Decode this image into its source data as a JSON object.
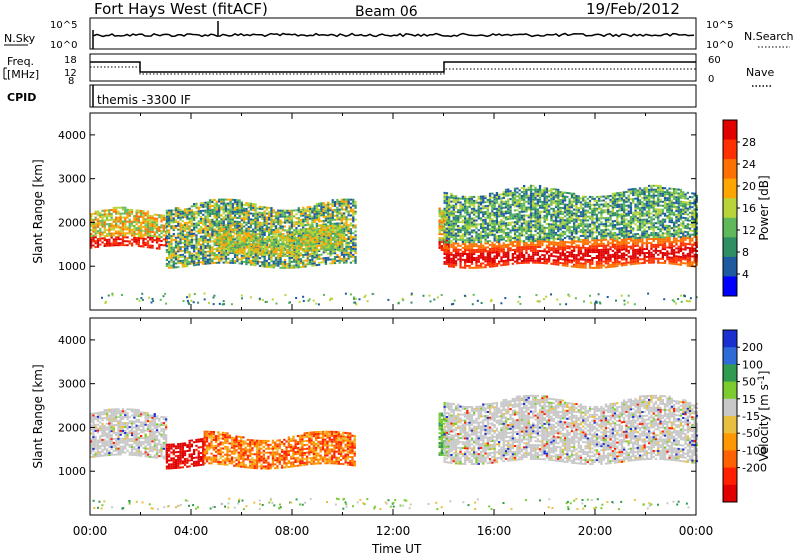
{
  "header": {
    "title": "Fort Hays West (fitACF)",
    "beam": "Beam 06",
    "date": "19/Feb/2012"
  },
  "top_panels": {
    "nsky_label": "N.Sky",
    "nsearch_label": "N.Search",
    "freq_label_1": "Freq.",
    "freq_label_2": "[MHz]",
    "nave_label": "Nave",
    "cpid_label": "CPID",
    "cpid_text": "themis -3300 IF",
    "noise_left_ticks": [
      "10^5",
      "10^0"
    ],
    "noise_right_ticks": [
      "10^5",
      "10^0"
    ],
    "freq_ticks": [
      "18",
      "12",
      "8"
    ],
    "nave_ticks": [
      "60",
      "0"
    ]
  },
  "colors": {
    "power_scale": [
      "#0000ff",
      "#1e5aa0",
      "#2f8f64",
      "#5fb85a",
      "#b8d438",
      "#ffa500",
      "#ff7000",
      "#ff3000",
      "#e00000"
    ],
    "velocity_scale": [
      "#1a2fd0",
      "#2e6bd8",
      "#2f9a50",
      "#7ccc30",
      "#c8c8c8",
      "#e8c040",
      "#ff9800",
      "#ff6000",
      "#ff2000",
      "#e00000"
    ]
  },
  "chart_data": [
    {
      "type": "heatmap",
      "title": "",
      "xlabel": "Time UT",
      "ylabel": "Slant Range [km]",
      "xlim": [
        "00:00",
        "24:00"
      ],
      "ylim": [
        0,
        4500
      ],
      "x_ticks": [
        "00:00",
        "04:00",
        "08:00",
        "12:00",
        "16:00",
        "20:00",
        "00:00"
      ],
      "y_ticks": [
        1000,
        2000,
        3000,
        4000
      ],
      "colorbar": {
        "label": "Power [dB]",
        "ticks": [
          4,
          8,
          12,
          16,
          20,
          24,
          28
        ],
        "range": [
          0,
          32
        ]
      },
      "echo_regions": [
        {
          "t_start": 0.0,
          "t_end": 3.0,
          "range_low": 1400,
          "range_high": 2200,
          "level": "high"
        },
        {
          "t_start": 3.0,
          "t_end": 10.5,
          "range_low": 1000,
          "range_high": 2400,
          "level": "mid"
        },
        {
          "t_start": 5.0,
          "t_end": 10.0,
          "range_low": 1300,
          "range_high": 1800,
          "level": "mid-high"
        },
        {
          "t_start": 13.8,
          "t_end": 14.2,
          "range_low": 1300,
          "range_high": 2200,
          "level": "high"
        },
        {
          "t_start": 14.0,
          "t_end": 24.0,
          "range_low": 1000,
          "range_high": 2700,
          "level": "high-band-near-1200"
        }
      ]
    },
    {
      "type": "heatmap",
      "title": "",
      "xlabel": "Time UT",
      "ylabel": "Slant Range [km]",
      "xlim": [
        "00:00",
        "24:00"
      ],
      "ylim": [
        0,
        4500
      ],
      "x_ticks": [
        "00:00",
        "04:00",
        "08:00",
        "12:00",
        "16:00",
        "20:00",
        "00:00"
      ],
      "y_ticks": [
        1000,
        2000,
        3000,
        4000
      ],
      "colorbar": {
        "label": "Velocity [m s^-1]",
        "ticks": [
          200,
          100,
          50,
          15,
          -15,
          -50,
          -100,
          -200
        ]
      },
      "echo_regions": [
        {
          "t_start": 0.0,
          "t_end": 3.0,
          "range_low": 1300,
          "range_high": 2300,
          "velocity": "-15 to 15"
        },
        {
          "t_start": 3.0,
          "t_end": 4.5,
          "range_low": 1100,
          "range_high": 1700,
          "velocity": "-200"
        },
        {
          "t_start": 4.5,
          "t_end": 10.5,
          "range_low": 1100,
          "range_high": 1800,
          "velocity": "-50 to -200"
        },
        {
          "t_start": 13.8,
          "t_end": 14.2,
          "range_low": 1300,
          "range_high": 2200,
          "velocity": "15 to 50"
        },
        {
          "t_start": 14.0,
          "t_end": 24.0,
          "range_low": 1200,
          "range_high": 2600,
          "velocity": "-15 to 15"
        }
      ]
    }
  ]
}
